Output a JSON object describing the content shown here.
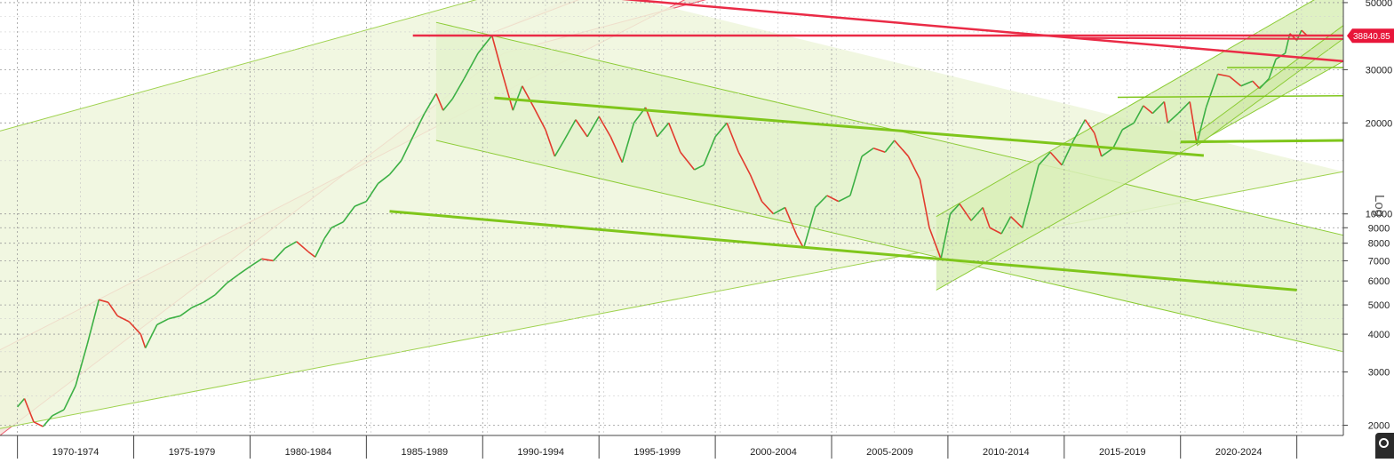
{
  "chart_data": {
    "type": "line",
    "title": "",
    "xlabel": "",
    "ylabel": "",
    "y_scale": "log",
    "scale_label": "Log",
    "xlim": [
      1968.75,
      2026.5
    ],
    "ylim": [
      1850,
      51000
    ],
    "grid": true,
    "last_price": "38840.85",
    "x_tick_labels": [
      "1970-1974",
      "1975-1979",
      "1980-1984",
      "1985-1989",
      "1990-1994",
      "1995-1999",
      "2000-2004",
      "2005-2009",
      "2010-2014",
      "2015-2019",
      "2020-2024"
    ],
    "x_ticks": [
      1969.5,
      1974.5,
      1979.5,
      1984.5,
      1989.5,
      1994.5,
      1999.5,
      2004.5,
      2009.5,
      2014.5,
      2019.5,
      2024.5
    ],
    "x_label_positions": [
      1972,
      1977,
      1982,
      1987,
      1992,
      1997,
      2002,
      2007,
      2012,
      2017,
      2022
    ],
    "y_ticks": [
      2000,
      3000,
      4000,
      5000,
      6000,
      7000,
      8000,
      9000,
      10000,
      20000,
      30000,
      50000
    ],
    "y_tick_labels": [
      "2000",
      "3000",
      "4000",
      "5000",
      "6000",
      "7000",
      "8000",
      "9000",
      "10000",
      "20000",
      "30000",
      "50000"
    ],
    "series": [
      {
        "color": "#3cb044",
        "down_color": "#e23b2e",
        "points": [
          [
            1969.5,
            2300
          ],
          [
            1969.8,
            2450
          ],
          [
            1970.2,
            2050
          ],
          [
            1970.6,
            1980
          ],
          [
            1971.0,
            2150
          ],
          [
            1971.5,
            2250
          ],
          [
            1972.0,
            2700
          ],
          [
            1972.5,
            3700
          ],
          [
            1973.0,
            5200
          ],
          [
            1973.4,
            5100
          ],
          [
            1973.8,
            4600
          ],
          [
            1974.3,
            4400
          ],
          [
            1974.8,
            4000
          ],
          [
            1975.0,
            3600
          ],
          [
            1975.5,
            4300
          ],
          [
            1976.0,
            4500
          ],
          [
            1976.5,
            4600
          ],
          [
            1977.0,
            4900
          ],
          [
            1977.5,
            5100
          ],
          [
            1978.0,
            5400
          ],
          [
            1978.5,
            5900
          ],
          [
            1979.0,
            6300
          ],
          [
            1979.5,
            6700
          ],
          [
            1980.0,
            7100
          ],
          [
            1980.5,
            7000
          ],
          [
            1981.0,
            7700
          ],
          [
            1981.5,
            8100
          ],
          [
            1982.0,
            7500
          ],
          [
            1982.3,
            7200
          ],
          [
            1982.7,
            8300
          ],
          [
            1983.0,
            9000
          ],
          [
            1983.5,
            9400
          ],
          [
            1984.0,
            10600
          ],
          [
            1984.5,
            11000
          ],
          [
            1985.0,
            12600
          ],
          [
            1985.5,
            13500
          ],
          [
            1986.0,
            15000
          ],
          [
            1986.5,
            18000
          ],
          [
            1987.0,
            21500
          ],
          [
            1987.5,
            25000
          ],
          [
            1987.8,
            22000
          ],
          [
            1988.2,
            24000
          ],
          [
            1988.7,
            28000
          ],
          [
            1989.3,
            34000
          ],
          [
            1989.9,
            38900
          ],
          [
            1990.3,
            30000
          ],
          [
            1990.8,
            22000
          ],
          [
            1991.2,
            26500
          ],
          [
            1991.7,
            22500
          ],
          [
            1992.2,
            19000
          ],
          [
            1992.6,
            15500
          ],
          [
            1993.0,
            17500
          ],
          [
            1993.5,
            20500
          ],
          [
            1994.0,
            18000
          ],
          [
            1994.5,
            21000
          ],
          [
            1995.0,
            18000
          ],
          [
            1995.5,
            14800
          ],
          [
            1996.0,
            20000
          ],
          [
            1996.5,
            22500
          ],
          [
            1997.0,
            18000
          ],
          [
            1997.5,
            20000
          ],
          [
            1998.0,
            16000
          ],
          [
            1998.6,
            14000
          ],
          [
            1999.0,
            14500
          ],
          [
            1999.5,
            18000
          ],
          [
            2000.0,
            20000
          ],
          [
            2000.5,
            16000
          ],
          [
            2001.0,
            13500
          ],
          [
            2001.5,
            11000
          ],
          [
            2002.0,
            10000
          ],
          [
            2002.5,
            10500
          ],
          [
            2003.0,
            8500
          ],
          [
            2003.3,
            7700
          ],
          [
            2003.8,
            10500
          ],
          [
            2004.3,
            11500
          ],
          [
            2004.8,
            11000
          ],
          [
            2005.3,
            11500
          ],
          [
            2005.8,
            15500
          ],
          [
            2006.3,
            16500
          ],
          [
            2006.8,
            16000
          ],
          [
            2007.2,
            17500
          ],
          [
            2007.8,
            15500
          ],
          [
            2008.3,
            13000
          ],
          [
            2008.7,
            9000
          ],
          [
            2009.2,
            7100
          ],
          [
            2009.6,
            10000
          ],
          [
            2010.0,
            10800
          ],
          [
            2010.5,
            9500
          ],
          [
            2011.0,
            10500
          ],
          [
            2011.3,
            9000
          ],
          [
            2011.8,
            8600
          ],
          [
            2012.2,
            9800
          ],
          [
            2012.7,
            9000
          ],
          [
            2013.0,
            11000
          ],
          [
            2013.4,
            14500
          ],
          [
            2013.9,
            16000
          ],
          [
            2014.4,
            14500
          ],
          [
            2014.9,
            17500
          ],
          [
            2015.4,
            20500
          ],
          [
            2015.8,
            18500
          ],
          [
            2016.1,
            15500
          ],
          [
            2016.6,
            16500
          ],
          [
            2017.0,
            19000
          ],
          [
            2017.5,
            20000
          ],
          [
            2017.9,
            22800
          ],
          [
            2018.3,
            21500
          ],
          [
            2018.8,
            23500
          ],
          [
            2018.95,
            20000
          ],
          [
            2019.4,
            21500
          ],
          [
            2019.9,
            23500
          ],
          [
            2020.2,
            17000
          ],
          [
            2020.6,
            22500
          ],
          [
            2021.1,
            29000
          ],
          [
            2021.6,
            28500
          ],
          [
            2022.1,
            26500
          ],
          [
            2022.6,
            27500
          ],
          [
            2022.9,
            26000
          ],
          [
            2023.3,
            28000
          ],
          [
            2023.6,
            32500
          ],
          [
            2024.0,
            34000
          ],
          [
            2024.2,
            39500
          ],
          [
            2024.5,
            37500
          ],
          [
            2024.7,
            40500
          ],
          [
            2024.95,
            38840
          ]
        ]
      }
    ],
    "bands": [
      {
        "fill": "#f2e3d8",
        "stroke": "#ee5a6e",
        "top": [
          [
            1968.75,
            3550
          ],
          [
            1999.0,
            55000
          ]
        ],
        "bottom": [
          [
            1968.75,
            1850
          ],
          [
            1990.4,
            34000
          ],
          [
            2002.5,
            60000
          ]
        ]
      },
      {
        "fill": "#f8dde4",
        "stroke": "#ee5a6e",
        "top": [
          [
            1995.0,
            60000
          ],
          [
            1998.0,
            60000
          ]
        ],
        "bottom": [
          [
            1990.0,
            40000
          ],
          [
            1996.0,
            60000
          ]
        ]
      },
      {
        "fill": "#eef6dc",
        "stroke": "#9fd24f",
        "top": [
          [
            1968.75,
            18800
          ],
          [
            1992.5,
            60000
          ]
        ],
        "bottom": [
          [
            1968.75,
            1950
          ],
          [
            2026.5,
            13800
          ]
        ]
      },
      {
        "fill": "#e4f2cc",
        "stroke": "#8ccc35",
        "top": [
          [
            1987.5,
            43000
          ],
          [
            2026.5,
            8500
          ]
        ],
        "bottom": [
          [
            1987.5,
            17500
          ],
          [
            2026.5,
            3500
          ]
        ]
      },
      {
        "fill": "#d9ee b9",
        "stroke": "#8ccc35",
        "top": [
          [
            2009.0,
            9800
          ],
          [
            2026.5,
            58000
          ]
        ],
        "bottom": [
          [
            2009.0,
            5600
          ],
          [
            2026.5,
            32000
          ]
        ]
      },
      {
        "fill": "#d2eaaa",
        "stroke": "#8ccc35",
        "top": [
          [
            2020.2,
            18500
          ],
          [
            2026.5,
            42000
          ]
        ],
        "bottom": [
          [
            2020.2,
            16800
          ],
          [
            2026.5,
            38000
          ]
        ]
      }
    ],
    "trend_lines": [
      {
        "color": "#7fc61b",
        "width": 3,
        "points": [
          [
            1990.0,
            24200
          ],
          [
            2020.5,
            15600
          ]
        ]
      },
      {
        "color": "#7fc61b",
        "width": 3,
        "points": [
          [
            1985.5,
            10200
          ],
          [
            2024.5,
            5600
          ]
        ]
      },
      {
        "color": "#7fc61b",
        "width": 3,
        "points": [
          [
            2019.5,
            17300
          ],
          [
            2026.5,
            17500
          ]
        ]
      },
      {
        "color": "#7fc61b",
        "width": 1.5,
        "points": [
          [
            2016.8,
            24300
          ],
          [
            2026.5,
            24600
          ]
        ]
      },
      {
        "color": "#7fc61b",
        "width": 1.5,
        "points": [
          [
            2021.5,
            30500
          ],
          [
            2026.5,
            30500
          ]
        ]
      },
      {
        "color": "#ea2b46",
        "width": 2.5,
        "points": [
          [
            1986.5,
            38900
          ],
          [
            2026.5,
            38900
          ]
        ]
      },
      {
        "color": "#ea2b46",
        "width": 2,
        "points": [
          [
            2015.0,
            38200
          ],
          [
            2026.5,
            37900
          ]
        ]
      },
      {
        "color": "#ea2b46",
        "width": 2.5,
        "points": [
          [
            1993.5,
            53000
          ],
          [
            2026.5,
            32000
          ]
        ]
      }
    ]
  }
}
